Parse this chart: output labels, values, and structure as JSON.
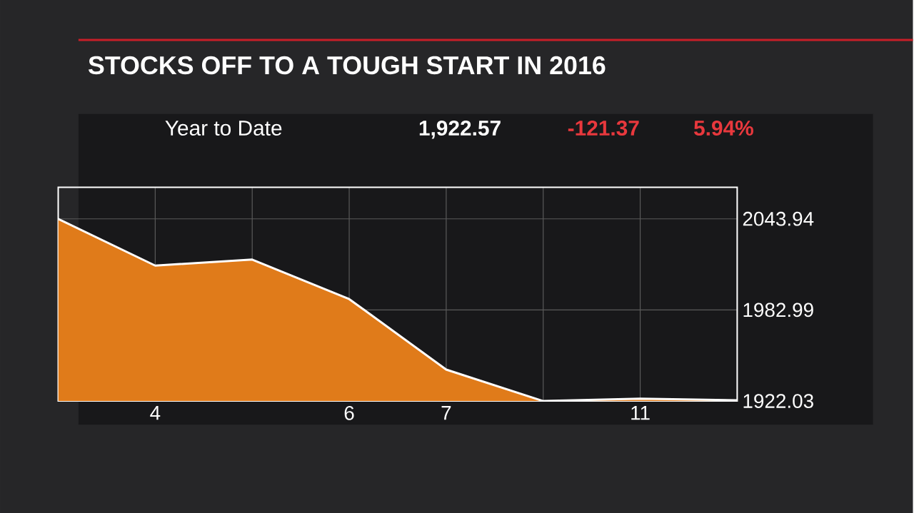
{
  "chart_data": {
    "type": "area",
    "title": "STOCKS OFF TO A TOUGH START IN 2016",
    "annotations": [
      "Year to Date",
      "1,922.57",
      "-121.37",
      "5.94%"
    ],
    "categories": [
      null,
      "4",
      null,
      "6",
      "7",
      null,
      "11",
      null
    ],
    "series": [
      {
        "color": "#e07b1a",
        "values": [
          2043.94,
          2012.66,
          2016.71,
          1990.26,
          1943.09,
          1922.03,
          1923.67,
          1922.57
        ]
      }
    ],
    "ylim": [
      1922.03,
      2065.1
    ],
    "yticks": [
      1922.03,
      1982.99,
      2043.94
    ],
    "grid": true
  }
}
